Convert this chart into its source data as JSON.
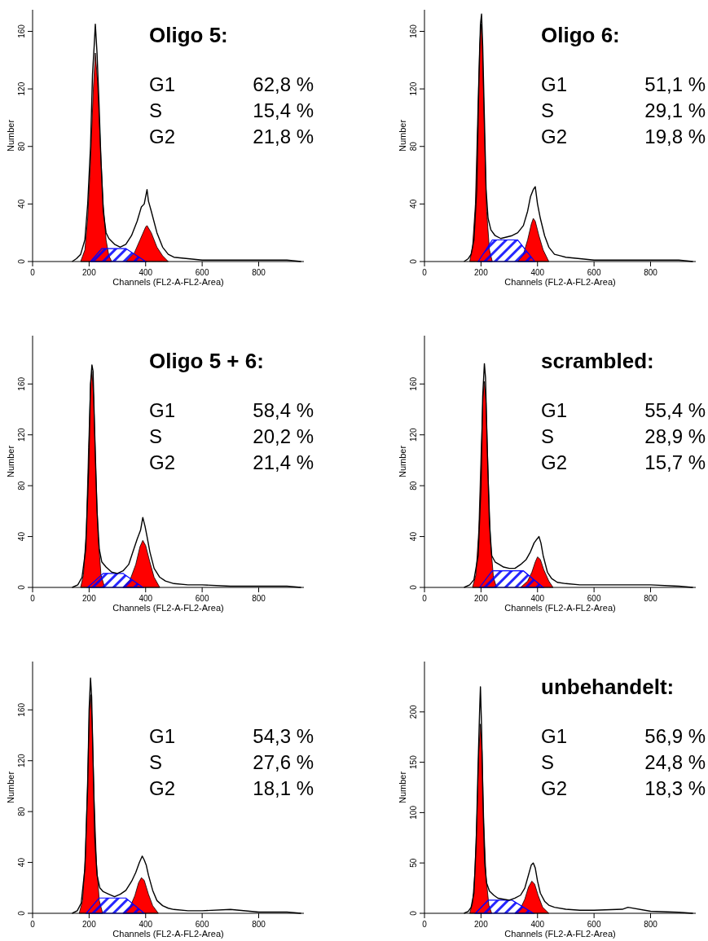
{
  "chart_data": [
    {
      "type": "line",
      "title": "Oligo 5:",
      "xlabel": "Channels (FL2-A-FL2-Area)",
      "ylabel": "Number",
      "xlim": [
        0,
        960
      ],
      "ylim": [
        0,
        175
      ],
      "xticks": [
        0,
        200,
        400,
        600,
        800
      ],
      "yticks": [
        0,
        40,
        80,
        120,
        160
      ],
      "annotations": [
        "G1",
        "62,8 %",
        "S",
        "15,4 %",
        "G2",
        "21,8 %"
      ],
      "series": [
        {
          "type": "area",
          "color": "#0000ff",
          "x": [
            205,
            245,
            330,
            400
          ],
          "values": [
            0,
            9,
            9,
            0
          ]
        },
        {
          "type": "area",
          "color": "#ff0000",
          "x": [
            170,
            185,
            195,
            205,
            215,
            222,
            230,
            240,
            250,
            260,
            270,
            280
          ],
          "values": [
            0,
            8,
            30,
            70,
            120,
            145,
            125,
            80,
            40,
            15,
            4,
            0
          ]
        },
        {
          "type": "area",
          "color": "#ff0000",
          "x": [
            330,
            360,
            380,
            400,
            405,
            420,
            440,
            460,
            480
          ],
          "values": [
            0,
            6,
            15,
            24,
            25,
            20,
            10,
            4,
            0
          ]
        },
        {
          "type": "line",
          "color": "#000000",
          "x": [
            140,
            155,
            170,
            185,
            195,
            205,
            212,
            218,
            222,
            228,
            235,
            242,
            250,
            260,
            270,
            290,
            310,
            330,
            350,
            370,
            385,
            395,
            405,
            410,
            420,
            440,
            460,
            480,
            500,
            550,
            600,
            700,
            800,
            900,
            950
          ],
          "values": [
            0,
            2,
            5,
            15,
            40,
            80,
            130,
            150,
            165,
            145,
            110,
            70,
            35,
            20,
            16,
            12,
            10,
            12,
            18,
            28,
            38,
            40,
            50,
            42,
            35,
            20,
            10,
            5,
            3,
            2,
            1,
            1,
            1,
            1,
            0
          ]
        }
      ]
    },
    {
      "type": "line",
      "title": "Oligo 6:",
      "xlabel": "Channels (FL2-A-FL2-Area)",
      "ylabel": "Number",
      "xlim": [
        0,
        960
      ],
      "ylim": [
        0,
        175
      ],
      "xticks": [
        0,
        200,
        400,
        600,
        800
      ],
      "yticks": [
        0,
        40,
        80,
        120,
        160
      ],
      "annotations": [
        "G1",
        "51,1 %",
        "S",
        "29,1 %",
        "G2",
        "19,8 %"
      ],
      "series": [
        {
          "type": "area",
          "color": "#0000ff",
          "x": [
            190,
            240,
            330,
            390
          ],
          "values": [
            0,
            15,
            15,
            0
          ]
        },
        {
          "type": "area",
          "color": "#ff0000",
          "x": [
            160,
            170,
            180,
            188,
            195,
            200,
            205,
            212,
            220,
            230,
            240
          ],
          "values": [
            0,
            10,
            40,
            100,
            150,
            165,
            150,
            90,
            35,
            8,
            0
          ]
        },
        {
          "type": "area",
          "color": "#ff0000",
          "x": [
            330,
            350,
            365,
            378,
            385,
            392,
            405,
            420,
            440
          ],
          "values": [
            0,
            5,
            15,
            26,
            30,
            28,
            18,
            8,
            0
          ]
        },
        {
          "type": "line",
          "color": "#000000",
          "x": [
            140,
            155,
            165,
            175,
            185,
            192,
            198,
            202,
            206,
            212,
            218,
            225,
            235,
            250,
            270,
            290,
            310,
            330,
            350,
            365,
            375,
            385,
            392,
            400,
            410,
            425,
            440,
            460,
            480,
            500,
            550,
            600,
            700,
            800,
            900,
            950
          ],
          "values": [
            0,
            2,
            5,
            15,
            50,
            120,
            165,
            172,
            150,
            100,
            50,
            30,
            22,
            18,
            16,
            17,
            18,
            20,
            25,
            35,
            45,
            50,
            52,
            40,
            30,
            18,
            10,
            5,
            4,
            3,
            2,
            1,
            1,
            1,
            1,
            0
          ]
        }
      ]
    },
    {
      "type": "line",
      "title": "Oligo 5 + 6:",
      "xlabel": "Channels (FL2-A-FL2-Area)",
      "ylabel": "Number",
      "xlim": [
        0,
        960
      ],
      "ylim": [
        0,
        198
      ],
      "xticks": [
        0,
        200,
        400,
        600,
        800
      ],
      "yticks": [
        0,
        40,
        80,
        120,
        160
      ],
      "annotations": [
        "G1",
        "58,4 %",
        "S",
        "20,2 %",
        "G2",
        "21,4 %"
      ],
      "series": [
        {
          "type": "area",
          "color": "#0000ff",
          "x": [
            195,
            250,
            320,
            390
          ],
          "values": [
            0,
            11,
            11,
            0
          ]
        },
        {
          "type": "area",
          "color": "#ff0000",
          "x": [
            170,
            180,
            190,
            198,
            205,
            210,
            216,
            224,
            232,
            242,
            255
          ],
          "values": [
            0,
            10,
            45,
            110,
            160,
            170,
            150,
            90,
            40,
            10,
            0
          ]
        },
        {
          "type": "area",
          "color": "#ff0000",
          "x": [
            320,
            345,
            365,
            380,
            390,
            400,
            415,
            430,
            450
          ],
          "values": [
            0,
            6,
            18,
            32,
            37,
            33,
            20,
            8,
            0
          ]
        },
        {
          "type": "line",
          "color": "#000000",
          "x": [
            140,
            160,
            175,
            188,
            198,
            205,
            210,
            214,
            220,
            228,
            236,
            245,
            260,
            280,
            300,
            320,
            340,
            355,
            370,
            382,
            390,
            398,
            405,
            415,
            430,
            450,
            470,
            500,
            550,
            600,
            700,
            800,
            900,
            950
          ],
          "values": [
            0,
            2,
            8,
            30,
            90,
            160,
            175,
            170,
            120,
            60,
            30,
            20,
            16,
            12,
            11,
            13,
            18,
            28,
            38,
            45,
            55,
            48,
            40,
            28,
            15,
            8,
            5,
            3,
            2,
            2,
            1,
            1,
            1,
            0
          ]
        }
      ]
    },
    {
      "type": "line",
      "title": "scrambled:",
      "xlabel": "Channels (FL2-A-FL2-Area)",
      "ylabel": "Number",
      "xlim": [
        0,
        960
      ],
      "ylim": [
        0,
        198
      ],
      "xticks": [
        0,
        200,
        400,
        600,
        800
      ],
      "yticks": [
        0,
        40,
        80,
        120,
        160
      ],
      "annotations": [
        "G1",
        "55,4 %",
        "S",
        "28,9 %",
        "G2",
        "15,7 %"
      ],
      "series": [
        {
          "type": "area",
          "color": "#0000ff",
          "x": [
            195,
            240,
            350,
            420
          ],
          "values": [
            0,
            13,
            13,
            0
          ]
        },
        {
          "type": "area",
          "color": "#ff0000",
          "x": [
            170,
            182,
            192,
            200,
            207,
            212,
            218,
            226,
            234,
            244,
            255
          ],
          "values": [
            0,
            10,
            45,
            105,
            150,
            162,
            145,
            85,
            35,
            8,
            0
          ]
        },
        {
          "type": "area",
          "color": "#ff0000",
          "x": [
            340,
            365,
            380,
            392,
            400,
            410,
            422,
            440,
            455
          ],
          "values": [
            0,
            5,
            12,
            20,
            24,
            22,
            14,
            5,
            0
          ]
        },
        {
          "type": "line",
          "color": "#000000",
          "x": [
            140,
            160,
            175,
            190,
            200,
            206,
            212,
            216,
            222,
            230,
            238,
            250,
            265,
            280,
            300,
            320,
            340,
            360,
            375,
            388,
            398,
            405,
            412,
            420,
            435,
            450,
            470,
            500,
            550,
            600,
            700,
            800,
            900,
            950
          ],
          "values": [
            0,
            2,
            6,
            25,
            80,
            150,
            176,
            165,
            110,
            50,
            25,
            20,
            18,
            16,
            15,
            15,
            18,
            22,
            28,
            35,
            38,
            40,
            35,
            25,
            12,
            7,
            4,
            3,
            2,
            2,
            2,
            2,
            1,
            0
          ]
        }
      ]
    },
    {
      "type": "line",
      "xlabel": "Channels (FL2-A-FL2-Area)",
      "ylabel": "Number",
      "xlim": [
        0,
        960
      ],
      "ylim": [
        0,
        198
      ],
      "xticks": [
        0,
        200,
        400,
        600,
        800
      ],
      "yticks": [
        0,
        40,
        80,
        120,
        160
      ],
      "annotations": [
        "G1",
        "54,3 %",
        "S",
        "27,6 %",
        "G2",
        "18,1 %"
      ],
      "series": [
        {
          "type": "area",
          "color": "#0000ff",
          "x": [
            190,
            235,
            330,
            395
          ],
          "values": [
            0,
            12,
            12,
            0
          ]
        },
        {
          "type": "area",
          "color": "#ff0000",
          "x": [
            165,
            177,
            187,
            195,
            201,
            205,
            211,
            218,
            226,
            236,
            248
          ],
          "values": [
            0,
            10,
            45,
            110,
            160,
            172,
            150,
            90,
            40,
            10,
            0
          ]
        },
        {
          "type": "area",
          "color": "#ff0000",
          "x": [
            320,
            345,
            362,
            375,
            385,
            395,
            410,
            425,
            445
          ],
          "values": [
            0,
            5,
            14,
            24,
            28,
            26,
            15,
            6,
            0
          ]
        },
        {
          "type": "line",
          "color": "#000000",
          "x": [
            140,
            158,
            172,
            185,
            195,
            200,
            205,
            209,
            214,
            220,
            228,
            238,
            250,
            270,
            290,
            310,
            330,
            350,
            365,
            378,
            388,
            395,
            402,
            410,
            425,
            440,
            460,
            480,
            500,
            550,
            600,
            700,
            800,
            900,
            950
          ],
          "values": [
            0,
            2,
            8,
            35,
            100,
            160,
            185,
            170,
            120,
            60,
            30,
            20,
            17,
            15,
            13,
            15,
            18,
            25,
            32,
            40,
            45,
            42,
            38,
            30,
            18,
            10,
            6,
            4,
            3,
            2,
            2,
            3,
            1,
            1,
            0
          ]
        }
      ]
    },
    {
      "type": "line",
      "title": "unbehandelt:",
      "xlabel": "Channels (FL2-A-FL2-Area)",
      "ylabel": "Number",
      "xlim": [
        0,
        960
      ],
      "ylim": [
        0,
        250
      ],
      "xticks": [
        0,
        200,
        400,
        600,
        800
      ],
      "yticks": [
        0,
        50,
        100,
        150,
        200
      ],
      "annotations": [
        "G1",
        "56,9 %",
        "S",
        "24,8 %",
        "G2",
        "18,3 %"
      ],
      "series": [
        {
          "type": "area",
          "color": "#0000ff",
          "x": [
            180,
            225,
            310,
            385
          ],
          "values": [
            0,
            13,
            13,
            0
          ]
        },
        {
          "type": "area",
          "color": "#ff0000",
          "x": [
            160,
            170,
            178,
            186,
            192,
            198,
            204,
            210,
            218,
            228,
            238
          ],
          "values": [
            0,
            10,
            40,
            100,
            160,
            188,
            160,
            90,
            35,
            8,
            0
          ]
        },
        {
          "type": "area",
          "color": "#ff0000",
          "x": [
            320,
            340,
            355,
            368,
            380,
            390,
            402,
            418,
            440
          ],
          "values": [
            0,
            5,
            14,
            26,
            32,
            29,
            18,
            6,
            0
          ]
        },
        {
          "type": "line",
          "color": "#000000",
          "x": [
            140,
            155,
            165,
            175,
            183,
            190,
            195,
            198,
            202,
            207,
            213,
            220,
            230,
            245,
            260,
            280,
            300,
            320,
            340,
            355,
            368,
            378,
            385,
            392,
            400,
            410,
            425,
            440,
            460,
            500,
            550,
            600,
            700,
            720,
            800,
            900,
            950
          ],
          "values": [
            0,
            2,
            6,
            20,
            70,
            150,
            200,
            225,
            185,
            110,
            50,
            30,
            22,
            18,
            15,
            14,
            13,
            15,
            18,
            25,
            38,
            48,
            50,
            45,
            32,
            20,
            12,
            8,
            6,
            4,
            3,
            3,
            4,
            6,
            2,
            1,
            0
          ]
        }
      ]
    }
  ]
}
